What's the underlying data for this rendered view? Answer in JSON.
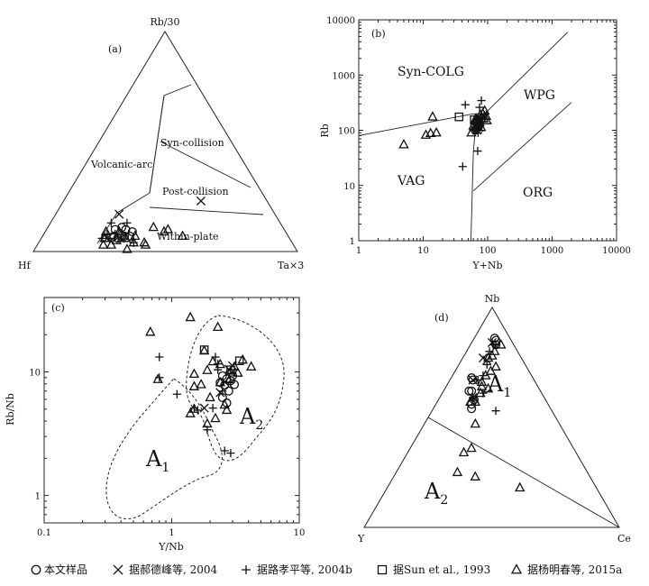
{
  "chart_data": [
    {
      "id": "a",
      "type": "ternary",
      "panel_label": "(a)",
      "apex_labels": {
        "top": "Rb/30",
        "left": "Hf",
        "right": "Ta×3"
      },
      "field_labels": [
        "Volcanic-arc",
        "Syn-collision",
        "Post-collision",
        "Within-plate"
      ],
      "series": [
        {
          "marker": "circle",
          "points": [
            [
              0.62,
              0.31
            ],
            [
              0.6,
              0.33
            ],
            [
              0.65,
              0.29
            ],
            [
              0.61,
              0.28
            ],
            [
              0.66,
              0.27
            ],
            [
              0.63,
              0.3
            ],
            [
              0.6,
              0.3
            ],
            [
              0.64,
              0.26
            ],
            [
              0.58,
              0.33
            ]
          ]
        },
        {
          "marker": "cross",
          "points": [
            [
              0.59,
              0.24
            ],
            [
              0.64,
              0.3
            ],
            [
              0.69,
              0.25
            ],
            [
              0.25,
              0.52
            ]
          ]
        },
        {
          "marker": "plus",
          "points": [
            [
              0.65,
              0.27
            ],
            [
              0.68,
              0.24
            ],
            [
              0.6,
              0.36
            ],
            [
              0.68,
              0.26
            ],
            [
              0.58,
              0.29
            ],
            [
              0.71,
              0.23
            ],
            [
              0.64,
              0.23
            ]
          ]
        },
        {
          "marker": "triangle",
          "points": [
            [
              0.4,
              0.53
            ],
            [
              0.44,
              0.46
            ],
            [
              0.46,
              0.45
            ],
            [
              0.49,
              0.4
            ],
            [
              0.56,
              0.41
            ],
            [
              0.58,
              0.35
            ],
            [
              0.64,
              0.35
            ],
            [
              0.66,
              0.29
            ],
            [
              0.7,
              0.24
            ],
            [
              0.72,
              0.25
            ],
            [
              0.69,
              0.28
            ],
            [
              0.62,
              0.32
            ],
            [
              0.6,
              0.36
            ],
            [
              0.56,
              0.4
            ],
            [
              0.68,
              0.23
            ],
            [
              0.63,
              0.28
            ]
          ]
        }
      ]
    },
    {
      "id": "b",
      "type": "scatter",
      "panel_label": "(b)",
      "xscale": "log",
      "yscale": "log",
      "xlim": [
        1,
        10000
      ],
      "ylim": [
        1,
        10000
      ],
      "xlabel": "Y+Nb",
      "ylabel": "Rb",
      "xticks": [
        "1",
        "10",
        "100",
        "1000",
        "10000"
      ],
      "yticks": [
        "1",
        "10",
        "100",
        "1000",
        "10000"
      ],
      "field_labels": [
        "Syn-COLG",
        "WPG",
        "VAG",
        "ORG"
      ],
      "boundaries": [
        {
          "x": [
            1,
            55,
            75
          ],
          "y": [
            80,
            195,
            200
          ]
        },
        {
          "x": [
            55,
            60,
            65
          ],
          "y": [
            1,
            40,
            120
          ]
        },
        {
          "x": [
            62,
            1750
          ],
          "y": [
            130,
            6000
          ]
        },
        {
          "x": [
            60,
            2000
          ],
          "y": [
            8,
            320
          ]
        }
      ],
      "series": [
        {
          "marker": "circle",
          "points": [
            [
              63,
              128
            ],
            [
              66,
              140
            ],
            [
              72,
              115
            ],
            [
              70,
              150
            ],
            [
              68,
              110
            ],
            [
              75,
              132
            ],
            [
              80,
              158
            ],
            [
              64,
              100
            ],
            [
              72,
              122
            ],
            [
              66,
              140
            ]
          ]
        },
        {
          "marker": "cross",
          "points": [
            [
              65,
              120
            ],
            [
              72,
              134
            ],
            [
              74,
              113
            ],
            [
              68,
              100
            ]
          ]
        },
        {
          "marker": "plus",
          "points": [
            [
              45,
              290
            ],
            [
              41,
              22
            ],
            [
              80,
              345
            ],
            [
              67,
              160
            ],
            [
              70,
              42
            ],
            [
              88,
              190
            ],
            [
              77,
              122
            ],
            [
              71,
              90
            ],
            [
              83,
              142
            ],
            [
              60,
              100
            ],
            [
              75,
              260
            ]
          ]
        },
        {
          "marker": "square",
          "points": [
            [
              36,
              175
            ],
            [
              62,
              155
            ]
          ]
        },
        {
          "marker": "triangle",
          "points": [
            [
              5,
              55
            ],
            [
              11,
              82
            ],
            [
              13,
              88
            ],
            [
              16,
              90
            ],
            [
              14,
              175
            ],
            [
              56,
              90
            ],
            [
              60,
              120
            ],
            [
              66,
              162
            ],
            [
              73,
              135
            ],
            [
              79,
              113
            ],
            [
              84,
              200
            ],
            [
              90,
              225
            ],
            [
              95,
              180
            ],
            [
              69,
              112
            ],
            [
              77,
              190
            ],
            [
              87,
              163
            ],
            [
              97,
              150
            ],
            [
              65,
              160
            ]
          ]
        }
      ]
    },
    {
      "id": "c",
      "type": "scatter",
      "panel_label": "(c)",
      "xscale": "log",
      "yscale": "log",
      "xlim": [
        0.1,
        10
      ],
      "ylim": [
        0.6,
        40
      ],
      "xlabel": "Y/Nb",
      "ylabel": "Rb/Nb",
      "xticks": [
        "0.1",
        "1",
        "10"
      ],
      "yticks": [
        "1",
        "10"
      ],
      "field_labels": [
        "A1",
        "A2"
      ],
      "series": [
        {
          "marker": "circle",
          "points": [
            [
              2.5,
              9.3
            ],
            [
              2.7,
              8.8
            ],
            [
              2.6,
              7.8
            ],
            [
              2.8,
              7.0
            ],
            [
              2.5,
              6.2
            ],
            [
              2.7,
              5.6
            ],
            [
              2.4,
              8.2
            ],
            [
              3.0,
              9.3
            ],
            [
              3.1,
              7.9
            ],
            [
              2.9,
              8.5
            ]
          ]
        },
        {
          "marker": "cross",
          "points": [
            [
              1.8,
              5.1
            ],
            [
              2.6,
              8.3
            ],
            [
              2.8,
              10.5
            ],
            [
              3.0,
              11.2
            ],
            [
              2.4,
              6.8
            ]
          ]
        },
        {
          "marker": "plus",
          "points": [
            [
              0.8,
              13.2
            ],
            [
              0.8,
              9.0
            ],
            [
              1.1,
              6.6
            ],
            [
              1.5,
              5.1
            ],
            [
              1.6,
              4.9
            ],
            [
              1.9,
              3.4
            ],
            [
              2.1,
              5.1
            ],
            [
              2.2,
              13.2
            ],
            [
              2.3,
              11.6
            ],
            [
              2.5,
              7.0
            ],
            [
              2.6,
              2.3
            ],
            [
              2.9,
              2.2
            ],
            [
              2.3,
              10.4
            ],
            [
              2.9,
              8.2
            ]
          ]
        },
        {
          "marker": "square",
          "points": [
            [
              1.8,
              15.1
            ],
            [
              2.9,
              10.4
            ],
            [
              3.4,
              12.3
            ]
          ]
        },
        {
          "marker": "triangle",
          "points": [
            [
              0.68,
              21
            ],
            [
              0.78,
              8.7
            ],
            [
              1.4,
              27.6
            ],
            [
              1.5,
              7.6
            ],
            [
              1.4,
              4.6
            ],
            [
              1.5,
              5.0
            ],
            [
              1.7,
              7.9
            ],
            [
              1.8,
              14.8
            ],
            [
              1.9,
              10.3
            ],
            [
              1.9,
              3.8
            ],
            [
              2.0,
              6.2
            ],
            [
              2.2,
              4.2
            ],
            [
              2.3,
              23
            ],
            [
              2.4,
              11.5
            ],
            [
              2.4,
              8.2
            ],
            [
              2.6,
              5.4
            ],
            [
              2.7,
              4.9
            ],
            [
              2.9,
              10.0
            ],
            [
              3.1,
              11.0
            ],
            [
              3.3,
              9.8
            ],
            [
              3.6,
              12.5
            ],
            [
              4.2,
              11.0
            ],
            [
              2.1,
              12.1
            ],
            [
              1.5,
              9.6
            ]
          ]
        }
      ]
    },
    {
      "id": "d",
      "type": "ternary",
      "panel_label": "(d)",
      "apex_labels": {
        "top": "Nb",
        "left": "Y",
        "right": "Ce"
      },
      "field_labels": [
        "A1",
        "A2"
      ],
      "series": [
        {
          "marker": "circle",
          "points": [
            [
              0.31,
              0.15
            ],
            [
              0.3,
              0.14
            ],
            [
              0.28,
              0.14
            ],
            [
              0.28,
              0.1
            ],
            [
              0.27,
              0.11
            ],
            [
              0.24,
              0.09
            ],
            [
              0.24,
              0.08
            ],
            [
              0.07,
              0.1
            ],
            [
              0.06,
              0.09
            ],
            [
              0.06,
              0.08
            ]
          ]
        },
        {
          "marker": "cross",
          "points": [
            [
              0.28,
              0.13
            ],
            [
              0.24,
              0.09
            ],
            [
              0.15,
              0.08
            ],
            [
              0.14,
              0.1
            ],
            [
              0.08,
              0.08
            ]
          ]
        },
        {
          "marker": "plus",
          "points": [
            [
              0.22,
              0.25
            ],
            [
              0.23,
              0.16
            ],
            [
              0.22,
              0.11
            ],
            [
              0.28,
              0.13
            ],
            [
              0.19,
              0.12
            ],
            [
              0.15,
              0.11
            ],
            [
              0.07,
              0.1
            ],
            [
              0.08,
              0.09
            ],
            [
              0.11,
              0.09
            ]
          ]
        },
        {
          "marker": "triangle",
          "points": [
            [
              0.3,
              0.52
            ],
            [
              0.45,
              0.32
            ],
            [
              0.51,
              0.24
            ],
            [
              0.44,
              0.22
            ],
            [
              0.4,
              0.24
            ],
            [
              0.33,
              0.2
            ],
            [
              0.3,
              0.13
            ],
            [
              0.28,
              0.15
            ],
            [
              0.24,
              0.15
            ],
            [
              0.22,
              0.14
            ],
            [
              0.21,
              0.13
            ],
            [
              0.18,
              0.13
            ],
            [
              0.15,
              0.14
            ],
            [
              0.13,
              0.1
            ],
            [
              0.12,
              0.15
            ],
            [
              0.09,
              0.11
            ],
            [
              0.05,
              0.12
            ],
            [
              0.11,
              0.11
            ],
            [
              0.2,
              0.17
            ]
          ]
        }
      ]
    }
  ],
  "legend": [
    {
      "marker": "circle",
      "label": "本文样品"
    },
    {
      "marker": "cross",
      "label": "据郝德峰等, 2004"
    },
    {
      "marker": "plus",
      "label": "据路孝平等, 2004b"
    },
    {
      "marker": "square",
      "label": "据Sun et al., 1993"
    },
    {
      "marker": "triangle",
      "label": "据杨明春等, 2015a"
    }
  ]
}
